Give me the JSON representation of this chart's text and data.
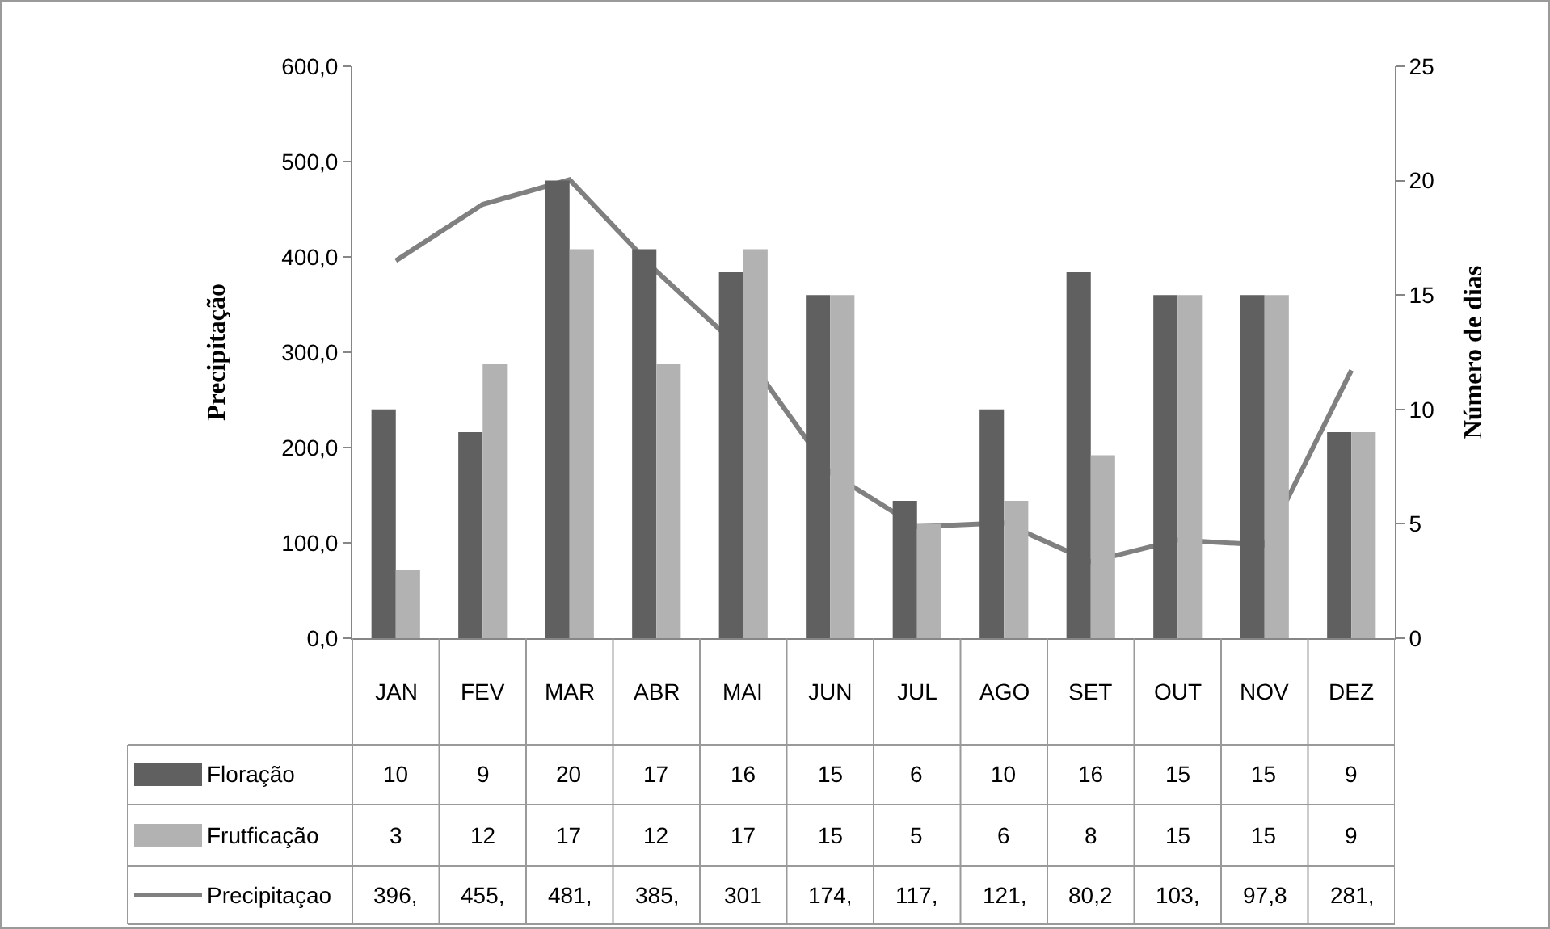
{
  "chart_data": {
    "type": "bar",
    "ylabel": "Precipitação",
    "y2label": "Número de dias",
    "categories": [
      "JAN",
      "FEV",
      "MAR",
      "ABR",
      "MAI",
      "JUN",
      "JUL",
      "AGO",
      "SET",
      "OUT",
      "NOV",
      "DEZ"
    ],
    "series": [
      {
        "name": "Floração",
        "axis": "y2",
        "color": "#606060",
        "values": [
          10,
          9,
          20,
          17,
          16,
          15,
          6,
          10,
          16,
          15,
          15,
          9
        ],
        "value_labels": [
          "10",
          "9",
          "20",
          "17",
          "16",
          "15",
          "6",
          "10",
          "16",
          "15",
          "15",
          "9"
        ]
      },
      {
        "name": "Frutficação",
        "axis": "y2",
        "color": "#b2b2b2",
        "values": [
          3,
          12,
          17,
          12,
          17,
          15,
          5,
          6,
          8,
          15,
          15,
          9
        ],
        "value_labels": [
          "3",
          "12",
          "17",
          "12",
          "17",
          "15",
          "5",
          "6",
          "8",
          "15",
          "15",
          "9"
        ]
      },
      {
        "name": "Precipitaçao",
        "type": "line",
        "axis": "y",
        "color": "#808080",
        "values": [
          396,
          455,
          481,
          385,
          301,
          174,
          117,
          121,
          80.2,
          103,
          97.8,
          281
        ],
        "value_labels": [
          "396,",
          "455,",
          "481,",
          "385,",
          "301",
          "174,",
          "117,",
          "121,",
          "80,2",
          "103,",
          "97,8",
          "281,"
        ]
      }
    ],
    "ylim": [
      0,
      600
    ],
    "yticks": [
      {
        "value": 0,
        "label": "0,0"
      },
      {
        "value": 100,
        "label": "100,0"
      },
      {
        "value": 200,
        "label": "200,0"
      },
      {
        "value": 300,
        "label": "300,0"
      },
      {
        "value": 400,
        "label": "400,0"
      },
      {
        "value": 500,
        "label": "500,0"
      },
      {
        "value": 600,
        "label": "600,0"
      }
    ],
    "y2lim": [
      0,
      25
    ],
    "y2ticks": [
      0,
      5,
      10,
      15,
      20,
      25
    ],
    "grid": false,
    "legend": "bottom left",
    "marker": "none",
    "line_style": "solid"
  }
}
